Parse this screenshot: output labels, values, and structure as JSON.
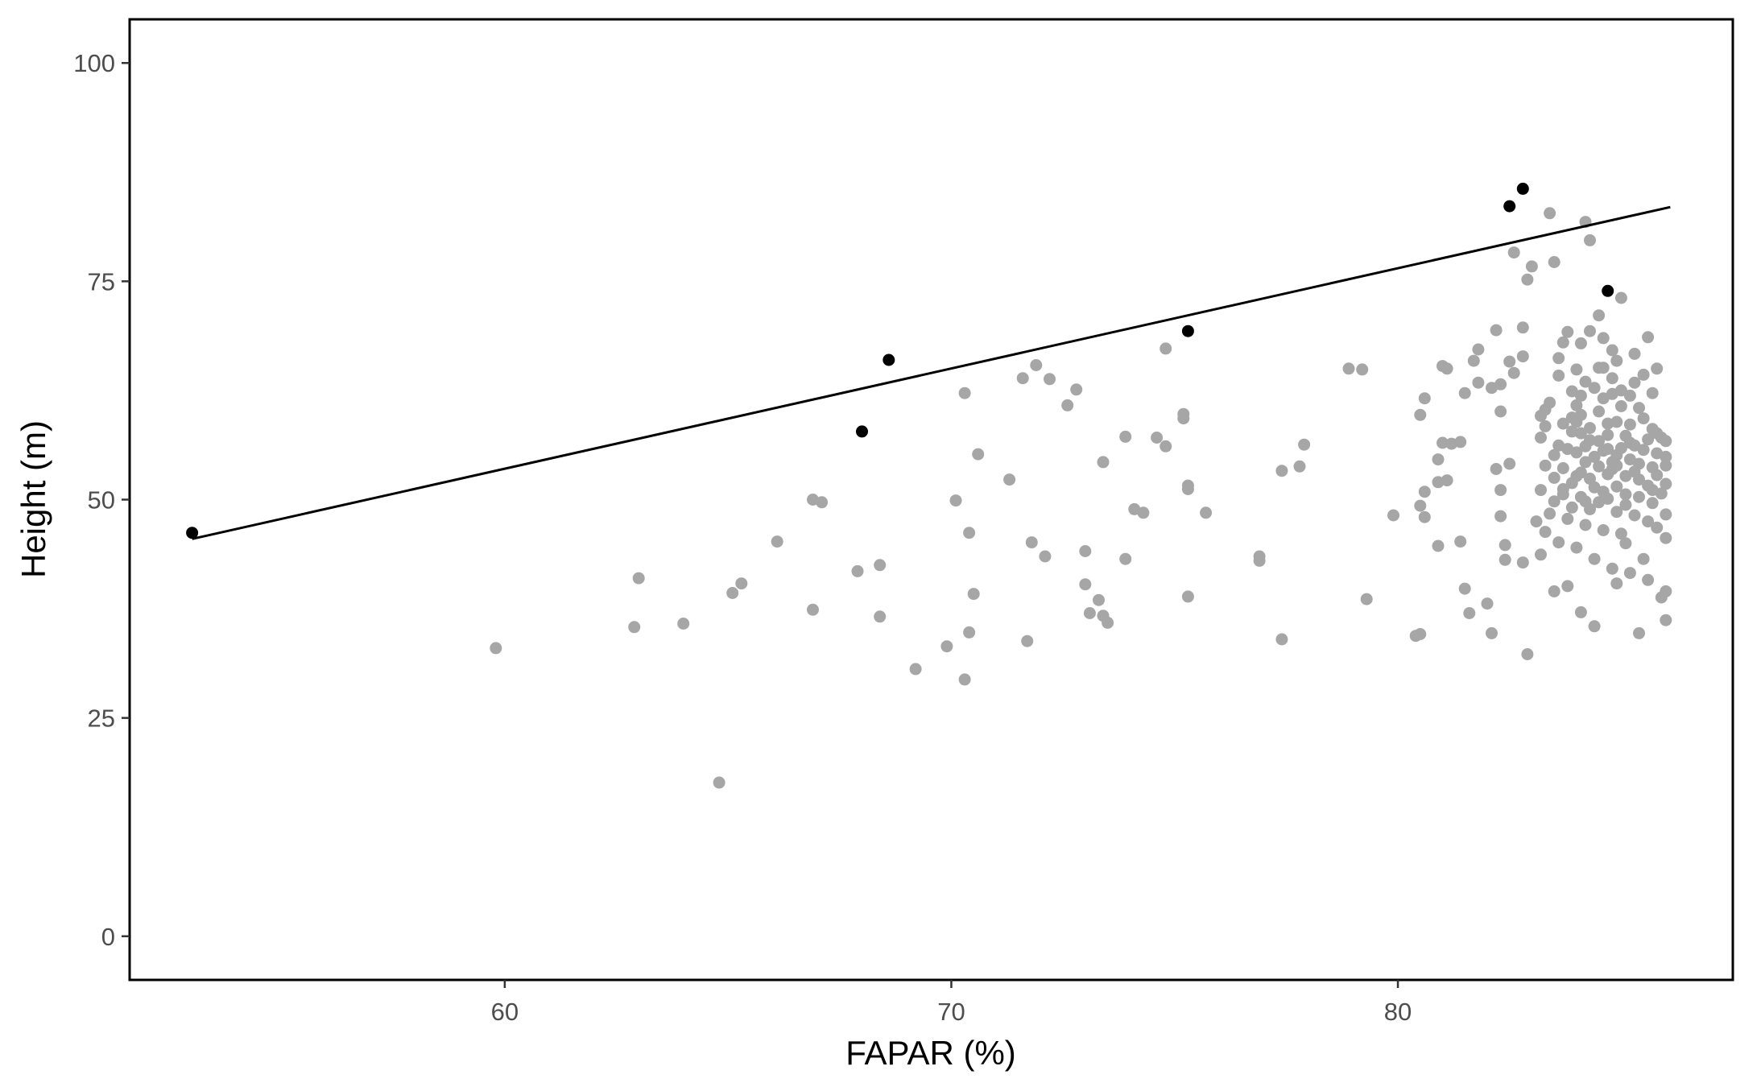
{
  "chart_data": {
    "type": "scatter",
    "xlabel": "FAPAR (%)",
    "ylabel": "Height (m)",
    "xlim": [
      51.6,
      87.5
    ],
    "ylim": [
      -5,
      105
    ],
    "x_ticks": [
      60,
      70,
      80
    ],
    "y_ticks": [
      0,
      25,
      50,
      75,
      100
    ],
    "grid": false,
    "colors": {
      "background_points": "#a6a6a6",
      "highlight_points": "#000000",
      "fit_line": "#000000",
      "frame": "#000000"
    },
    "fit_line": {
      "x": [
        53,
        86.1
      ],
      "y": [
        45.5,
        83.5
      ]
    },
    "series": [
      {
        "role": "highlight",
        "points": [
          [
            53,
            46.2
          ],
          [
            68,
            57.8
          ],
          [
            68.6,
            66
          ],
          [
            75.3,
            69.3
          ],
          [
            82.5,
            83.6
          ],
          [
            82.8,
            85.6
          ],
          [
            84.7,
            73.9
          ]
        ]
      },
      {
        "role": "background",
        "points": [
          [
            59.8,
            33
          ],
          [
            62.9,
            35.4
          ],
          [
            63,
            41
          ],
          [
            64,
            35.8
          ],
          [
            64.8,
            17.6
          ],
          [
            65.1,
            39.3
          ],
          [
            65.3,
            40.4
          ],
          [
            66.1,
            45.2
          ],
          [
            66.9,
            37.4
          ],
          [
            66.9,
            50
          ],
          [
            67.1,
            49.7
          ],
          [
            67.9,
            41.8
          ],
          [
            68.4,
            42.5
          ],
          [
            68.4,
            36.6
          ],
          [
            69.2,
            30.6
          ],
          [
            69.9,
            33.2
          ],
          [
            70.1,
            49.9
          ],
          [
            70.3,
            62.2
          ],
          [
            70.3,
            29.4
          ],
          [
            70.4,
            46.2
          ],
          [
            70.4,
            34.8
          ],
          [
            70.5,
            39.2
          ],
          [
            70.6,
            55.2
          ],
          [
            71.3,
            52.3
          ],
          [
            71.6,
            63.9
          ],
          [
            71.7,
            33.8
          ],
          [
            71.8,
            45.1
          ],
          [
            71.9,
            65.4
          ],
          [
            72.1,
            43.5
          ],
          [
            72.2,
            63.8
          ],
          [
            72.6,
            60.8
          ],
          [
            72.8,
            62.6
          ],
          [
            73,
            40.3
          ],
          [
            73,
            44.1
          ],
          [
            73.1,
            37
          ],
          [
            73.3,
            38.5
          ],
          [
            73.4,
            54.3
          ],
          [
            73.5,
            35.9
          ],
          [
            73.4,
            36.7
          ],
          [
            73.9,
            57.2
          ],
          [
            73.9,
            43.2
          ],
          [
            74.1,
            48.9
          ],
          [
            74.3,
            48.5
          ],
          [
            74.6,
            57.1
          ],
          [
            74.8,
            56.1
          ],
          [
            74.8,
            67.3
          ],
          [
            75.2,
            59.3
          ],
          [
            75.2,
            59.8
          ],
          [
            75.3,
            51.2
          ],
          [
            75.3,
            51.6
          ],
          [
            75.3,
            38.9
          ],
          [
            75.7,
            48.5
          ],
          [
            76.9,
            43.5
          ],
          [
            76.9,
            43
          ],
          [
            77.4,
            53.3
          ],
          [
            77.4,
            34
          ],
          [
            77.8,
            53.8
          ],
          [
            77.9,
            56.3
          ],
          [
            78.9,
            65
          ],
          [
            79.2,
            64.9
          ],
          [
            79.3,
            38.6
          ],
          [
            79.9,
            48.2
          ],
          [
            80.4,
            34.4
          ],
          [
            80.5,
            34.6
          ],
          [
            80.5,
            49.3
          ],
          [
            80.6,
            50.9
          ],
          [
            80.6,
            48
          ],
          [
            80.6,
            61.6
          ],
          [
            80.5,
            59.7
          ],
          [
            80.9,
            52
          ],
          [
            80.9,
            54.6
          ],
          [
            80.9,
            44.7
          ],
          [
            81,
            56.5
          ],
          [
            81,
            65.3
          ],
          [
            81.1,
            52.2
          ],
          [
            81.1,
            65
          ],
          [
            81.2,
            56.4
          ],
          [
            81.4,
            56.6
          ],
          [
            81.4,
            45.2
          ],
          [
            81.5,
            62.2
          ],
          [
            81.5,
            39.8
          ],
          [
            81.6,
            37
          ],
          [
            81.7,
            65.9
          ],
          [
            81.8,
            67.2
          ],
          [
            81.8,
            63.4
          ],
          [
            82,
            38.1
          ],
          [
            82.1,
            34.7
          ],
          [
            82.1,
            62.8
          ],
          [
            82.2,
            53.5
          ],
          [
            82.2,
            69.4
          ],
          [
            82.3,
            48.1
          ],
          [
            82.3,
            60.1
          ],
          [
            82.3,
            63.2
          ],
          [
            82.3,
            51.1
          ],
          [
            82.4,
            44.8
          ],
          [
            82.4,
            43.1
          ],
          [
            82.5,
            54.1
          ],
          [
            82.5,
            65.8
          ],
          [
            82.6,
            78.3
          ],
          [
            82.6,
            64.5
          ],
          [
            82.8,
            69.7
          ],
          [
            82.8,
            66.4
          ],
          [
            82.8,
            42.8
          ],
          [
            82.9,
            32.3
          ],
          [
            82.9,
            75.2
          ],
          [
            83,
            76.7
          ],
          [
            83.2,
            59.6
          ],
          [
            83.3,
            58.4
          ],
          [
            83.4,
            82.8
          ],
          [
            83.5,
            77.2
          ],
          [
            83.7,
            68
          ],
          [
            83.9,
            62.4
          ],
          [
            84,
            60.8
          ],
          [
            84.2,
            81.8
          ],
          [
            84.3,
            79.7
          ],
          [
            84.5,
            71.1
          ],
          [
            84.6,
            65.1
          ],
          [
            84.8,
            62.1
          ],
          [
            84.9,
            65.9
          ],
          [
            85,
            73.1
          ],
          [
            85.3,
            66.7
          ],
          [
            85.6,
            68.6
          ],
          [
            85.8,
            65
          ],
          [
            85.8,
            57.6
          ],
          [
            86,
            56.7
          ],
          [
            86,
            53.9
          ],
          [
            86,
            54.9
          ],
          [
            86,
            39.5
          ],
          [
            86,
            36.2
          ],
          [
            85.4,
            34.7
          ],
          [
            85.1,
            45
          ],
          [
            84.9,
            40.4
          ],
          [
            84.4,
            35.5
          ],
          [
            84.1,
            37.1
          ],
          [
            83.8,
            40.1
          ],
          [
            83.5,
            39.5
          ],
          [
            83.3,
            46.3
          ],
          [
            83.1,
            47.5
          ],
          [
            83.4,
            61.1
          ],
          [
            83.6,
            56.2
          ],
          [
            83.7,
            58.7
          ],
          [
            83.9,
            59.4
          ],
          [
            84.1,
            57.6
          ],
          [
            84.3,
            58.2
          ],
          [
            84.5,
            60.1
          ],
          [
            84.7,
            58.7
          ],
          [
            84.9,
            58.9
          ],
          [
            85.1,
            57.3
          ],
          [
            85.3,
            56.2
          ],
          [
            85.6,
            56.9
          ],
          [
            85.8,
            55.3
          ],
          [
            83.5,
            52.5
          ],
          [
            83.7,
            53.6
          ],
          [
            83.9,
            51.9
          ],
          [
            84.1,
            53.1
          ],
          [
            84.3,
            52.4
          ],
          [
            84.5,
            53.8
          ],
          [
            84.7,
            52.9
          ],
          [
            84.9,
            51.5
          ],
          [
            85.1,
            52.7
          ],
          [
            85.3,
            53.2
          ],
          [
            85.6,
            51.6
          ],
          [
            85.8,
            52.8
          ],
          [
            83.5,
            49.8
          ],
          [
            83.7,
            50.6
          ],
          [
            83.9,
            49.1
          ],
          [
            84.1,
            50.3
          ],
          [
            84.3,
            48.9
          ],
          [
            84.5,
            49.7
          ],
          [
            84.7,
            50.1
          ],
          [
            84.9,
            48.6
          ],
          [
            85.1,
            49.4
          ],
          [
            85.3,
            48.2
          ],
          [
            85.6,
            47.5
          ],
          [
            85.8,
            46.8
          ],
          [
            83.6,
            64.2
          ],
          [
            84,
            64.9
          ],
          [
            84.2,
            63.5
          ],
          [
            84.4,
            62.8
          ],
          [
            84.6,
            61.6
          ],
          [
            84.8,
            63.9
          ],
          [
            85,
            62.5
          ],
          [
            85.2,
            61.9
          ],
          [
            85.4,
            60.5
          ],
          [
            85.5,
            59.3
          ],
          [
            85.7,
            58.1
          ],
          [
            83.5,
            55.1
          ],
          [
            83.8,
            55.8
          ],
          [
            84,
            55.4
          ],
          [
            84.2,
            56.1
          ],
          [
            84.4,
            54.9
          ],
          [
            84.6,
            55.6
          ],
          [
            84.8,
            54.3
          ],
          [
            85,
            55.9
          ],
          [
            85.2,
            54.6
          ],
          [
            85.4,
            54.1
          ],
          [
            85.7,
            53.7
          ],
          [
            86,
            51.8
          ],
          [
            86,
            48.3
          ],
          [
            86,
            45.6
          ],
          [
            83.2,
            43.7
          ],
          [
            83.6,
            45.1
          ],
          [
            84,
            44.5
          ],
          [
            84.4,
            43.2
          ],
          [
            84.8,
            42.1
          ],
          [
            85.2,
            41.6
          ],
          [
            85.6,
            40.8
          ],
          [
            85.9,
            38.8
          ],
          [
            85.5,
            43.2
          ],
          [
            85,
            46.1
          ],
          [
            84.6,
            46.5
          ],
          [
            84.2,
            47.1
          ],
          [
            83.8,
            47.8
          ],
          [
            83.4,
            48.4
          ],
          [
            83.2,
            51.1
          ],
          [
            83.3,
            53.9
          ],
          [
            83.2,
            57.1
          ],
          [
            83.3,
            60.3
          ],
          [
            83.6,
            66.2
          ],
          [
            83.8,
            69.2
          ],
          [
            84.1,
            67.9
          ],
          [
            84.3,
            69.3
          ],
          [
            84.6,
            68.5
          ],
          [
            84.8,
            67.1
          ],
          [
            85.5,
            64.3
          ],
          [
            85.7,
            62.2
          ],
          [
            84.5,
            65.1
          ],
          [
            84.1,
            61.9
          ],
          [
            84.7,
            57.4
          ],
          [
            84.9,
            55.1
          ],
          [
            84.4,
            51.4
          ],
          [
            84,
            52.7
          ],
          [
            84.8,
            53.5
          ],
          [
            85.1,
            50.6
          ],
          [
            84.6,
            50.9
          ],
          [
            84.2,
            49.8
          ],
          [
            85.4,
            50.3
          ],
          [
            85.7,
            49.6
          ],
          [
            85.9,
            50.7
          ],
          [
            83.7,
            51.2
          ],
          [
            85.2,
            58.6
          ],
          [
            84.3,
            56.8
          ],
          [
            84,
            58.9
          ],
          [
            85,
            60.7
          ],
          [
            85.5,
            55.7
          ],
          [
            85.9,
            57.1
          ],
          [
            85.3,
            63.4
          ],
          [
            83.9,
            57.8
          ],
          [
            84.5,
            56.7
          ],
          [
            84.2,
            54.3
          ],
          [
            85.7,
            51.1
          ],
          [
            84.9,
            53.9
          ],
          [
            85.4,
            52.3
          ],
          [
            84.7,
            55.8
          ],
          [
            84.1,
            59.7
          ],
          [
            85.2,
            56.5
          ]
        ]
      }
    ]
  }
}
